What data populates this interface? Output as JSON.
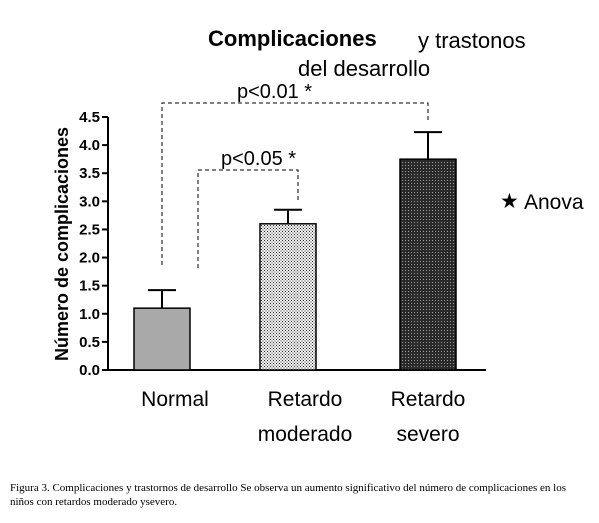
{
  "chart_data": {
    "type": "bar",
    "title_bold": "Complicaciones",
    "title_rest_line1": "y  trastonos",
    "title_rest_line2": "del desarrollo",
    "ylabel": "Número de complicaciones",
    "xlabel": "",
    "ylim": [
      0,
      4.5
    ],
    "yticks": [
      "0.0",
      "0.5",
      "1.0",
      "1.5",
      "2.0",
      "2.5",
      "3.0",
      "3.5",
      "4.0",
      "4.5"
    ],
    "categories": [
      {
        "line1": "Normal",
        "line2": ""
      },
      {
        "line1": "Retardo",
        "line2": "moderado"
      },
      {
        "line1": "Retardo",
        "line2": "severo"
      }
    ],
    "values": [
      1.1,
      2.6,
      3.75
    ],
    "errors": [
      0.32,
      0.25,
      0.48
    ],
    "fills": [
      "#a9a9a9",
      "#c4c4c4",
      "#404040"
    ],
    "annotations": [
      {
        "text": "p<0.05 *",
        "from": 0,
        "to": 1
      },
      {
        "text": "p<0.01 *",
        "from": 0,
        "to": 2
      }
    ],
    "legend": {
      "marker": "★",
      "text": "Anova",
      "placement": "right"
    },
    "grid": false
  },
  "caption": "Figura 3. Complicaciones y trastornos de desarrollo Se observa un aumento significativo del número de complicaciones en los niños con retardos moderado ysevero."
}
